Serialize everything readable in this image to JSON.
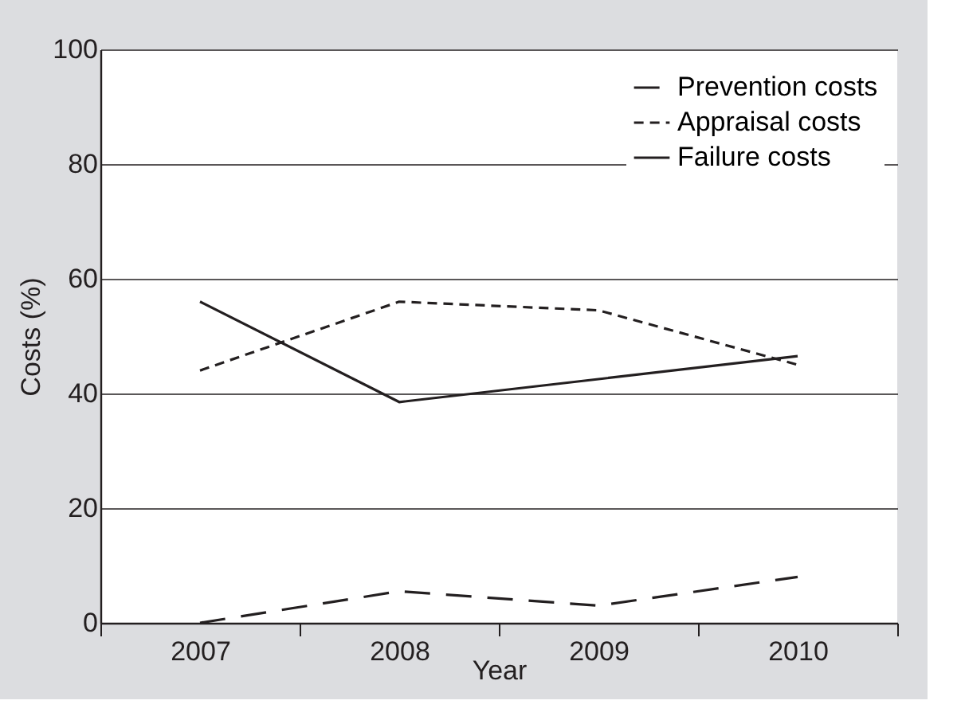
{
  "chart_data": {
    "type": "line",
    "xlabel": "Year",
    "ylabel": "Costs (%)",
    "categories": [
      "2007",
      "2008",
      "2009",
      "2010"
    ],
    "series": [
      {
        "name": "Prevention costs",
        "color": "#231f20",
        "line_style": "dashed",
        "values": [
          0,
          5.5,
          3,
          8
        ]
      },
      {
        "name": "Appraisal costs",
        "color": "#231f20",
        "line_style": "dashed",
        "values": [
          44,
          56,
          54.5,
          45
        ]
      },
      {
        "name": "Failure costs",
        "color": "#231f20",
        "line_style": "solid",
        "values": [
          56,
          38.5,
          42.5,
          46.5
        ]
      }
    ],
    "ylim": [
      0,
      100
    ],
    "yticks": [
      0,
      20,
      40,
      60,
      80,
      100
    ],
    "grid": "y",
    "legend": "top right"
  }
}
